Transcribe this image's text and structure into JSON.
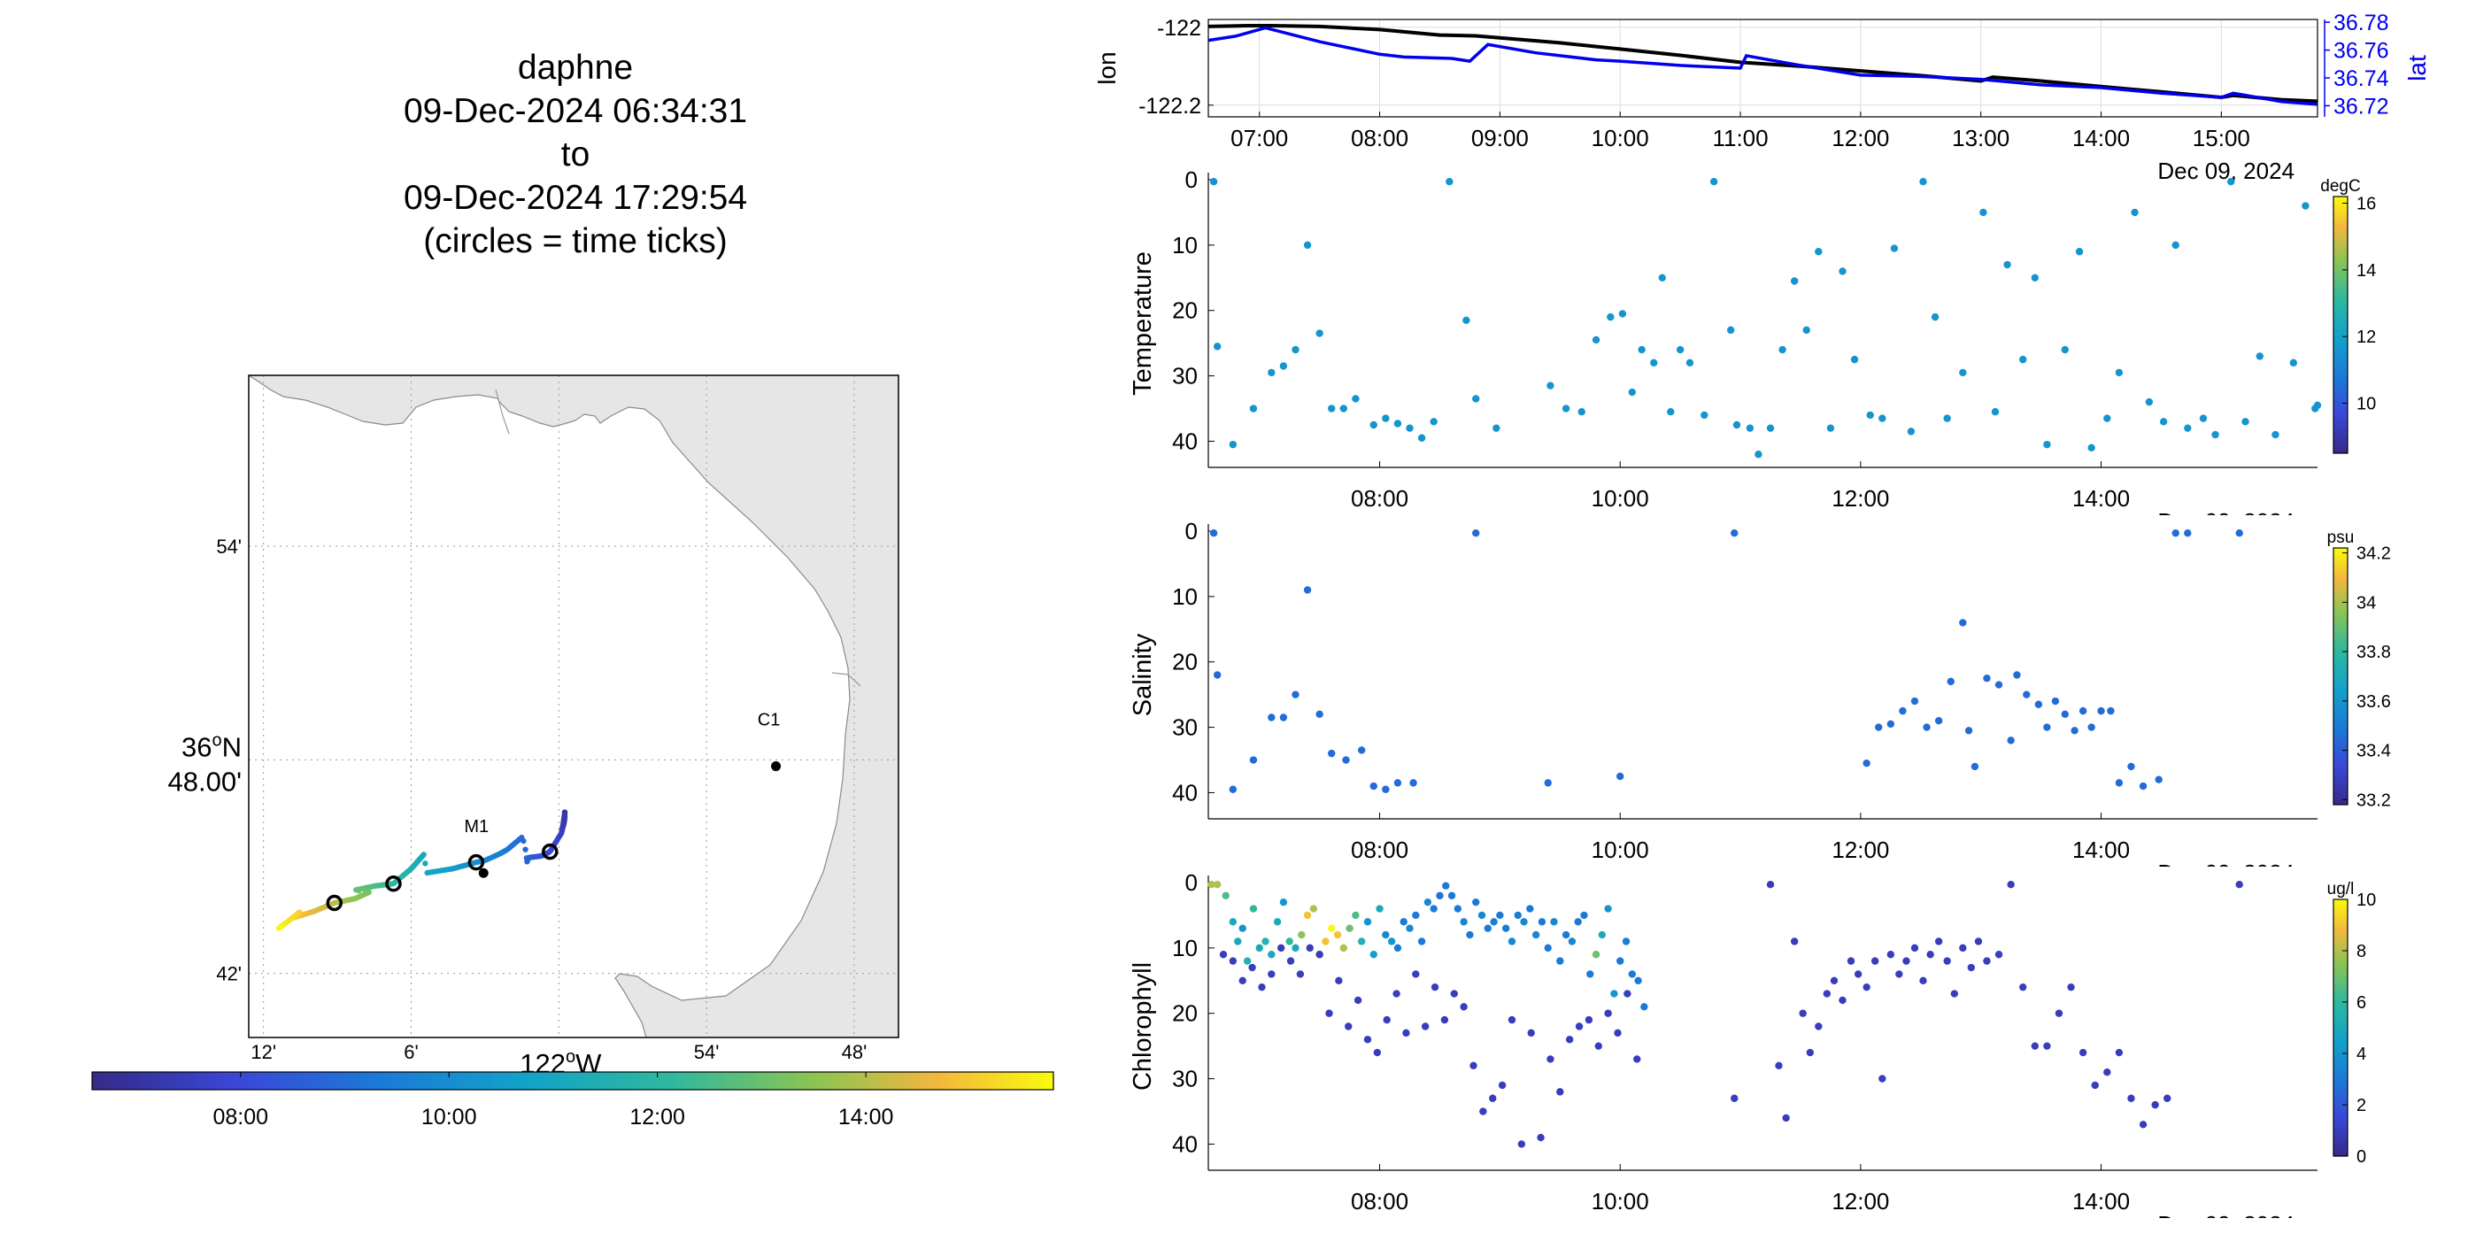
{
  "title": {
    "platform": "daphne",
    "start": "09-Dec-2024 06:34:31",
    "to": "to",
    "end": "09-Dec-2024 17:29:54",
    "note": "(circles = time ticks)"
  },
  "map": {
    "lat_ticks": [
      "54'",
      "42'"
    ],
    "lat_main_deg": "36",
    "lat_main_sup": "o",
    "lat_main_suffix": "N",
    "lat_main_min": "48.00'",
    "lon_ticks": [
      "12'",
      "6'",
      "54'",
      "48'"
    ],
    "lon_main_deg": "122",
    "lon_main_sup": "o",
    "lon_main_suffix": "W",
    "stations": [
      {
        "name": "C1",
        "lon": -121.853,
        "lat": 36.797
      },
      {
        "name": "M1",
        "lon": -122.051,
        "lat": 36.747
      }
    ],
    "land_color": "#e6e6e6",
    "colorbar_ticks": [
      "08:00",
      "10:00",
      "12:00",
      "14:00"
    ],
    "colorbar_range_hours": [
      6.575,
      15.8
    ]
  },
  "panels": {
    "time_axis": {
      "start_hour": 6.575,
      "end_hour": 15.8
    },
    "date_label": "Dec 09, 2024",
    "lonlat": {
      "ylabel_left": "lon",
      "ylabel_right": "lat",
      "left_ticks": [
        "-122",
        "-122.2"
      ],
      "right_ticks": [
        "36.78",
        "36.76",
        "36.74",
        "36.72"
      ],
      "xticks": [
        "07:00",
        "08:00",
        "09:00",
        "10:00",
        "11:00",
        "12:00",
        "13:00",
        "14:00",
        "15:00"
      ],
      "lon_color": "#000000",
      "lat_color": "#0000ee"
    },
    "temperature": {
      "ylabel": "Temperature",
      "unit": "degC",
      "cbar_ticks": [
        "16",
        "14",
        "12",
        "10"
      ],
      "cbar_range": [
        8.5,
        16.2
      ]
    },
    "salinity": {
      "ylabel": "Salinity",
      "unit": "psu",
      "cbar_ticks": [
        "34.2",
        "34",
        "33.8",
        "33.6",
        "33.4",
        "33.2"
      ],
      "cbar_range": [
        33.18,
        34.22
      ]
    },
    "chlorophyll": {
      "ylabel": "Chlorophyll",
      "unit": "ug/l",
      "cbar_ticks": [
        "10",
        "8",
        "6",
        "4",
        "2",
        "0"
      ],
      "cbar_range": [
        0,
        10
      ]
    },
    "yticks": [
      "0",
      "10",
      "20",
      "30",
      "40"
    ],
    "xticks": [
      "08:00",
      "10:00",
      "12:00",
      "14:00"
    ]
  },
  "chart_data": [
    {
      "type": "line",
      "title": "",
      "xlabel": "",
      "ylabel": "lon",
      "series": [
        {
          "values_axis": "left",
          "x": [
            6.575,
            6.9,
            7.1,
            7.5,
            8.0,
            8.5,
            8.8,
            9.5,
            10.0,
            10.5,
            11.0,
            11.5,
            12.0,
            12.5,
            13.0,
            13.1,
            13.5,
            14.0,
            14.5,
            15.0,
            15.1,
            15.5,
            15.8
          ],
          "values": [
            -121.998,
            -121.996,
            -121.996,
            -121.998,
            -122.006,
            -122.02,
            -122.022,
            -122.04,
            -122.056,
            -122.072,
            -122.09,
            -122.1,
            -122.112,
            -122.124,
            -122.138,
            -122.128,
            -122.138,
            -122.152,
            -122.166,
            -122.18,
            -122.175,
            -122.186,
            -122.19
          ]
        },
        {
          "name": "lat",
          "values_axis": "right",
          "x": [
            6.575,
            6.8,
            7.05,
            7.5,
            8.0,
            8.2,
            8.6,
            8.75,
            8.9,
            9.3,
            9.8,
            10.0,
            10.5,
            11.0,
            11.05,
            11.5,
            12.0,
            12.5,
            13.0,
            13.5,
            14.0,
            14.5,
            15.0,
            15.1,
            15.5,
            15.8
          ],
          "values": [
            36.767,
            36.77,
            36.776,
            36.766,
            36.757,
            36.755,
            36.754,
            36.752,
            36.764,
            36.758,
            36.753,
            36.752,
            36.749,
            36.747,
            36.756,
            36.749,
            36.742,
            36.741,
            36.739,
            36.735,
            36.733,
            36.729,
            36.726,
            36.729,
            36.723,
            36.721
          ]
        }
      ],
      "ylim": [
        -122.23,
        -121.98
      ],
      "y2lim": [
        36.712,
        36.782
      ]
    },
    {
      "type": "scatter",
      "ylabel": "Temperature",
      "unit": "degC",
      "x": [
        6.62,
        6.65,
        6.78,
        6.95,
        7.1,
        7.2,
        7.3,
        7.4,
        7.5,
        7.6,
        7.7,
        7.8,
        7.95,
        8.05,
        8.15,
        8.25,
        8.35,
        8.45,
        8.58,
        8.72,
        8.8,
        8.97,
        9.42,
        9.55,
        9.68,
        9.8,
        9.92,
        10.02,
        10.1,
        10.18,
        10.28,
        10.35,
        10.42,
        10.5,
        10.58,
        10.7,
        10.78,
        10.92,
        10.97,
        11.08,
        11.15,
        11.25,
        11.35,
        11.45,
        11.55,
        11.65,
        11.75,
        11.85,
        11.95,
        12.08,
        12.18,
        12.28,
        12.42,
        12.52,
        12.62,
        12.72,
        12.85,
        13.02,
        13.12,
        13.22,
        13.35,
        13.45,
        13.55,
        13.7,
        13.82,
        13.92,
        14.05,
        14.15,
        14.28,
        14.4,
        14.52,
        14.62,
        14.72,
        14.85,
        14.95,
        15.08,
        15.2,
        15.32,
        15.45,
        15.6,
        15.7,
        15.78,
        15.8
      ],
      "y": [
        0.3,
        25.5,
        40.5,
        35.0,
        29.5,
        28.5,
        26.0,
        10.0,
        23.5,
        35.0,
        35.0,
        33.5,
        37.5,
        36.5,
        37.3,
        38.0,
        39.5,
        37.0,
        0.3,
        21.5,
        33.5,
        38.0,
        31.5,
        35.0,
        35.5,
        24.5,
        21.0,
        20.5,
        32.5,
        26.0,
        28.0,
        15.0,
        35.5,
        26.0,
        28.0,
        36.0,
        0.3,
        23.0,
        37.5,
        38.0,
        42.0,
        38.0,
        26.0,
        15.5,
        23.0,
        11.0,
        38.0,
        14.0,
        27.5,
        36.0,
        36.5,
        10.5,
        38.5,
        0.3,
        21.0,
        36.5,
        29.5,
        5.0,
        35.5,
        13.0,
        27.5,
        15.0,
        40.5,
        26.0,
        11.0,
        41.0,
        36.5,
        29.5,
        5.0,
        34.0,
        37.0,
        10.0,
        38.0,
        36.5,
        39.0,
        0.3,
        37.0,
        27.0,
        39.0,
        28.0,
        4.0,
        35.0,
        34.5
      ],
      "c": [
        11.5,
        11.5,
        11.6,
        11.6,
        11.6,
        11.6,
        11.6,
        11.6,
        11.6,
        11.6,
        11.6,
        11.6,
        11.6,
        11.6,
        11.6,
        11.6,
        11.6,
        11.6,
        11.6,
        11.6,
        11.6,
        11.6,
        11.6,
        11.6,
        11.6,
        11.6,
        11.6,
        11.6,
        11.6,
        11.6,
        11.6,
        11.6,
        11.6,
        11.6,
        11.6,
        11.6,
        11.6,
        11.6,
        11.6,
        11.6,
        11.6,
        11.6,
        11.6,
        11.6,
        11.6,
        11.6,
        11.6,
        11.6,
        11.6,
        11.6,
        11.6,
        11.6,
        11.6,
        11.6,
        11.6,
        11.6,
        11.6,
        11.6,
        11.6,
        11.6,
        11.6,
        11.6,
        11.6,
        11.6,
        11.6,
        11.6,
        11.6,
        11.6,
        11.6,
        11.6,
        11.6,
        11.6,
        11.6,
        11.6,
        11.6,
        11.6,
        11.6,
        11.6,
        11.6,
        11.6,
        11.6,
        11.6,
        11.6
      ],
      "ylim": [
        0,
        44
      ]
    },
    {
      "type": "scatter",
      "ylabel": "Salinity",
      "unit": "psu",
      "x": [
        6.62,
        6.65,
        6.78,
        6.95,
        7.1,
        7.2,
        7.3,
        7.4,
        7.5,
        7.6,
        7.72,
        7.85,
        7.95,
        8.05,
        8.15,
        8.28,
        8.8,
        9.4,
        10.0,
        10.95,
        12.05,
        12.15,
        12.25,
        12.35,
        12.45,
        12.55,
        12.65,
        12.75,
        12.85,
        12.9,
        12.95,
        13.05,
        13.15,
        13.25,
        13.3,
        13.38,
        13.48,
        13.55,
        13.62,
        13.7,
        13.78,
        13.85,
        13.92,
        14.0,
        14.08,
        14.15,
        14.25,
        14.35,
        14.48,
        14.62,
        14.72,
        15.15
      ],
      "y": [
        0.3,
        22,
        39.5,
        35,
        28.5,
        28.5,
        25,
        9,
        28,
        34,
        35,
        33.5,
        39,
        39.5,
        38.5,
        38.5,
        0.3,
        38.5,
        37.5,
        0.3,
        35.5,
        30,
        29.5,
        27.5,
        26,
        30,
        29,
        23,
        14,
        30.5,
        36,
        22.5,
        23.5,
        32,
        22,
        25,
        26.5,
        30,
        26,
        28,
        30.5,
        27.5,
        30,
        27.5,
        27.5,
        38.5,
        36,
        39,
        38,
        0.3,
        0.3,
        0.3
      ],
      "c": [
        33.45,
        33.45,
        33.45,
        33.45,
        33.45,
        33.45,
        33.45,
        33.45,
        33.45,
        33.45,
        33.45,
        33.45,
        33.45,
        33.45,
        33.45,
        33.45,
        33.45,
        33.45,
        33.45,
        33.45,
        33.45,
        33.45,
        33.45,
        33.45,
        33.45,
        33.45,
        33.45,
        33.45,
        33.45,
        33.45,
        33.45,
        33.45,
        33.45,
        33.45,
        33.45,
        33.45,
        33.45,
        33.45,
        33.45,
        33.45,
        33.45,
        33.45,
        33.45,
        33.45,
        33.45,
        33.45,
        33.45,
        33.45,
        33.45,
        33.45,
        33.45,
        33.45
      ],
      "ylim": [
        0,
        44
      ]
    },
    {
      "type": "scatter",
      "ylabel": "Chlorophyll",
      "unit": "ug/l",
      "x": [
        6.6,
        6.65,
        6.72,
        6.78,
        6.82,
        6.86,
        6.9,
        6.95,
        7.0,
        7.05,
        7.1,
        7.15,
        7.2,
        7.25,
        7.3,
        7.35,
        7.4,
        7.45,
        7.5,
        7.55,
        7.6,
        7.65,
        7.7,
        7.75,
        7.8,
        7.85,
        7.9,
        7.95,
        8.0,
        8.05,
        8.1,
        8.15,
        8.2,
        8.25,
        8.3,
        8.35,
        8.4,
        8.45,
        8.5,
        8.55,
        8.6,
        8.65,
        8.7,
        8.75,
        8.8,
        8.85,
        8.9,
        8.95,
        9.0,
        9.05,
        9.1,
        9.15,
        9.2,
        9.25,
        9.3,
        9.35,
        9.4,
        9.45,
        9.5,
        9.55,
        9.6,
        9.65,
        9.7,
        9.75,
        9.8,
        9.85,
        9.9,
        9.95,
        10.0,
        10.05,
        10.1,
        10.15,
        10.2,
        6.7,
        6.78,
        6.86,
        6.94,
        7.02,
        7.1,
        7.18,
        7.26,
        7.34,
        7.42,
        7.5,
        7.58,
        7.66,
        7.74,
        7.82,
        7.9,
        7.98,
        8.06,
        8.14,
        8.22,
        8.3,
        8.38,
        8.46,
        8.54,
        8.62,
        8.7,
        8.78,
        8.86,
        8.94,
        9.02,
        9.1,
        9.18,
        9.26,
        9.34,
        9.42,
        9.5,
        9.58,
        9.66,
        9.74,
        9.82,
        9.9,
        9.98,
        10.06,
        10.14,
        10.95,
        11.25,
        11.32,
        11.38,
        11.45,
        11.52,
        11.58,
        11.65,
        11.72,
        11.78,
        11.85,
        11.92,
        11.98,
        12.05,
        12.12,
        12.18,
        12.25,
        12.32,
        12.38,
        12.45,
        12.52,
        12.58,
        12.65,
        12.72,
        12.78,
        12.85,
        12.92,
        12.98,
        13.05,
        13.15,
        13.25,
        13.35,
        13.45,
        13.55,
        13.65,
        13.75,
        13.85,
        13.95,
        14.05,
        14.15,
        14.25,
        14.35,
        14.45,
        14.55,
        15.15
      ],
      "y": [
        0.3,
        0.3,
        2,
        6,
        9,
        7,
        12,
        4,
        10,
        9,
        11,
        6,
        3,
        9,
        10,
        8,
        5,
        4,
        11,
        9,
        7,
        8,
        10,
        7,
        5,
        9,
        6,
        11,
        4,
        8,
        9,
        10,
        6,
        7,
        5,
        9,
        3,
        4,
        2,
        0.5,
        2,
        4,
        6,
        8,
        3,
        5,
        7,
        6,
        5,
        7,
        9,
        5,
        6,
        4,
        8,
        6,
        10,
        6,
        12,
        8,
        9,
        6,
        5,
        14,
        11,
        8,
        4,
        17,
        12,
        9,
        14,
        15,
        19,
        11,
        12,
        15,
        13,
        16,
        14,
        10,
        12,
        14,
        10,
        11,
        20,
        15,
        22,
        18,
        24,
        26,
        21,
        17,
        23,
        14,
        22,
        16,
        21,
        17,
        19,
        28,
        35,
        33,
        31,
        21,
        40,
        23,
        39,
        27,
        32,
        24,
        22,
        21,
        25,
        20,
        23,
        17,
        27,
        33,
        0.3,
        28,
        36,
        9,
        20,
        26,
        22,
        17,
        15,
        18,
        12,
        14,
        16,
        12,
        30,
        11,
        14,
        12,
        10,
        15,
        11,
        9,
        12,
        17,
        10,
        13,
        9,
        12,
        11,
        0.3,
        16,
        25,
        25,
        20,
        16,
        26,
        31,
        29,
        26,
        33,
        37,
        34,
        33,
        0.3
      ],
      "c": [
        8,
        8,
        6.5,
        5,
        5,
        4,
        5.5,
        6,
        5,
        5.5,
        5,
        5,
        4,
        6,
        5,
        7.5,
        9,
        8,
        7,
        9,
        10,
        9,
        8,
        7,
        6.5,
        5.5,
        4,
        4.5,
        5,
        3.5,
        4,
        3,
        3,
        3.5,
        3,
        3,
        3.5,
        3,
        2.8,
        3,
        3,
        3,
        3.5,
        3,
        3,
        3.5,
        3,
        3.2,
        3,
        3,
        3.5,
        3,
        3.5,
        3,
        3.5,
        3,
        3,
        3.5,
        3,
        3,
        3.5,
        3,
        3,
        3,
        7,
        5,
        4,
        4,
        3,
        3,
        3,
        3,
        3,
        1,
        1,
        1,
        1,
        1,
        1,
        1,
        1,
        1,
        1,
        1,
        1,
        1,
        1,
        1,
        1,
        1,
        1,
        1,
        1,
        1,
        1,
        1,
        1,
        1,
        1,
        1,
        1,
        1,
        1,
        1,
        1,
        1,
        1,
        1,
        1,
        1,
        1,
        1,
        1,
        1,
        1,
        1,
        1,
        1,
        1,
        1,
        1,
        1,
        1,
        1,
        1,
        1,
        1,
        1,
        1,
        1,
        1,
        1,
        1,
        1,
        1,
        1,
        1,
        1,
        1,
        1,
        1,
        1,
        1,
        1,
        1,
        1,
        1,
        1,
        1,
        1,
        1,
        1,
        1,
        1,
        1,
        1,
        1,
        1,
        1,
        1,
        1,
        1
      ],
      "ylim": [
        0,
        44
      ]
    }
  ]
}
